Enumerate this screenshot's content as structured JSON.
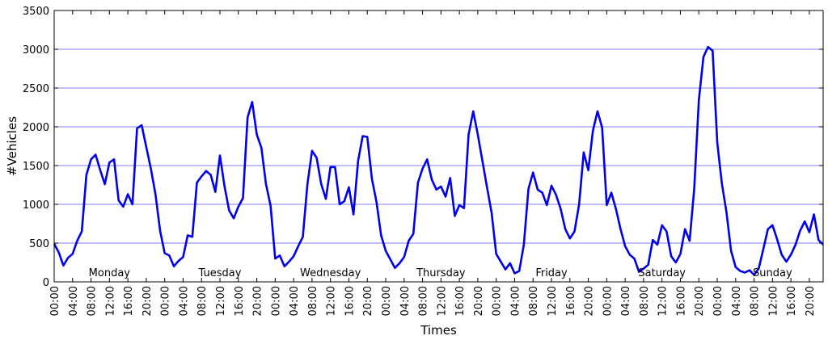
{
  "chart_data": {
    "type": "line",
    "xlabel": "Times",
    "ylabel": "#Vehicles",
    "ylim": [
      0,
      3500
    ],
    "yticks": [
      0,
      500,
      1000,
      1500,
      2000,
      2500,
      3000,
      3500
    ],
    "grid": "horizontal",
    "line_color": "#0000ee",
    "grid_color": "#8080ff",
    "xlim": [
      0,
      167
    ],
    "x_unit": "hours since Monday 00:00",
    "xtick_labels": [
      "00:00",
      "04:00",
      "08:00",
      "12:00",
      "16:00",
      "20:00",
      "00:00",
      "04:00",
      "08:00",
      "12:00",
      "16:00",
      "20:00",
      "00:00",
      "04:00",
      "08:00",
      "12:00",
      "16:00",
      "20:00",
      "00:00",
      "04:00",
      "08:00",
      "12:00",
      "16:00",
      "20:00",
      "00:00",
      "04:00",
      "08:00",
      "12:00",
      "16:00",
      "20:00",
      "00:00",
      "04:00",
      "08:00",
      "12:00",
      "16:00",
      "20:00",
      "00:00",
      "04:00",
      "08:00",
      "12:00",
      "16:00",
      "20:00"
    ],
    "day_labels": [
      "Monday",
      "Tuesday",
      "Wednesday",
      "Thursday",
      "Friday",
      "Saturday",
      "Sunday"
    ],
    "series": [
      {
        "values": [
          490,
          380,
          210,
          310,
          360,
          530,
          650,
          1380,
          1580,
          1640,
          1440,
          1260,
          1540,
          1580,
          1050,
          970,
          1130,
          1000,
          1980,
          2020,
          1740,
          1460,
          1130,
          660,
          370,
          340,
          200,
          270,
          320,
          600,
          580,
          1280,
          1360,
          1430,
          1380,
          1160,
          1630,
          1230,
          920,
          820,
          970,
          1080,
          2120,
          2320,
          1900,
          1730,
          1260,
          980,
          300,
          340,
          200,
          260,
          330,
          460,
          580,
          1260,
          1690,
          1600,
          1260,
          1070,
          1480,
          1480,
          1000,
          1040,
          1220,
          870,
          1560,
          1880,
          1870,
          1330,
          1030,
          600,
          400,
          290,
          180,
          240,
          320,
          530,
          620,
          1280,
          1460,
          1580,
          1320,
          1190,
          1230,
          1100,
          1340,
          850,
          990,
          950,
          1900,
          2200,
          1900,
          1560,
          1220,
          890,
          360,
          260,
          160,
          240,
          110,
          140,
          480,
          1200,
          1410,
          1190,
          1150,
          990,
          1240,
          1120,
          940,
          680,
          560,
          650,
          1000,
          1670,
          1440,
          1950,
          2200,
          1990,
          990,
          1150,
          940,
          680,
          460,
          350,
          300,
          130,
          170,
          220,
          540,
          480,
          730,
          650,
          330,
          250,
          360,
          680,
          530,
          1200,
          2340,
          2900,
          3030,
          2980,
          1800,
          1270,
          900,
          400,
          190,
          140,
          120,
          150,
          90,
          170,
          420,
          680,
          730,
          550,
          350,
          260,
          350,
          480,
          660,
          780,
          640,
          870,
          540,
          480
        ]
      }
    ]
  }
}
